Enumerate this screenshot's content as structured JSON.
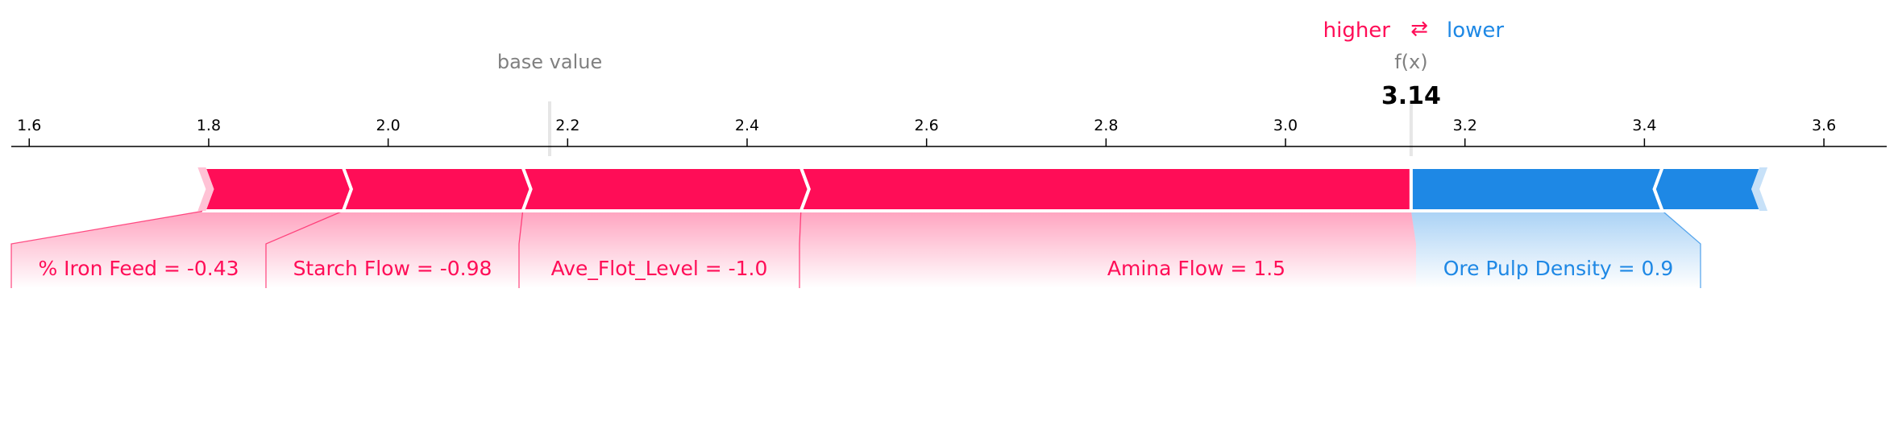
{
  "colors": {
    "positive": "#ff0d57",
    "negative": "#1e88e5",
    "muted": "#808080"
  },
  "legend": {
    "higher": "higher",
    "arrows": "⇄",
    "lower": "lower"
  },
  "chart_data": {
    "type": "force",
    "base_value_label": "base value",
    "base_value": 2.18,
    "output_label": "f(x)",
    "output_value": 3.14,
    "output_value_text": "3.14",
    "xlim": [
      1.58,
      3.67
    ],
    "ticks": [
      1.6,
      1.8,
      2.0,
      2.2,
      2.4,
      2.6,
      2.8,
      3.0,
      3.2,
      3.4,
      3.6
    ],
    "tick_labels": [
      "1.6",
      "1.8",
      "2.0",
      "2.2",
      "2.4",
      "2.6",
      "2.8",
      "3.0",
      "3.2",
      "3.4",
      "3.6"
    ],
    "positive_features": [
      {
        "label": "% Iron Feed = -0.43",
        "from": 1.795,
        "to": 1.95
      },
      {
        "label": "Starch Flow = -0.98",
        "from": 1.95,
        "to": 2.15
      },
      {
        "label": "Ave_Flot_Level = -1.0",
        "from": 2.15,
        "to": 2.46
      },
      {
        "label": "Amina Flow = 1.5",
        "from": 2.46,
        "to": 3.14
      }
    ],
    "negative_features": [
      {
        "label": "Ore Pulp Density = 0.9",
        "from": 3.14,
        "to": 3.42
      },
      {
        "label": "",
        "from": 3.42,
        "to": 3.53
      }
    ]
  }
}
